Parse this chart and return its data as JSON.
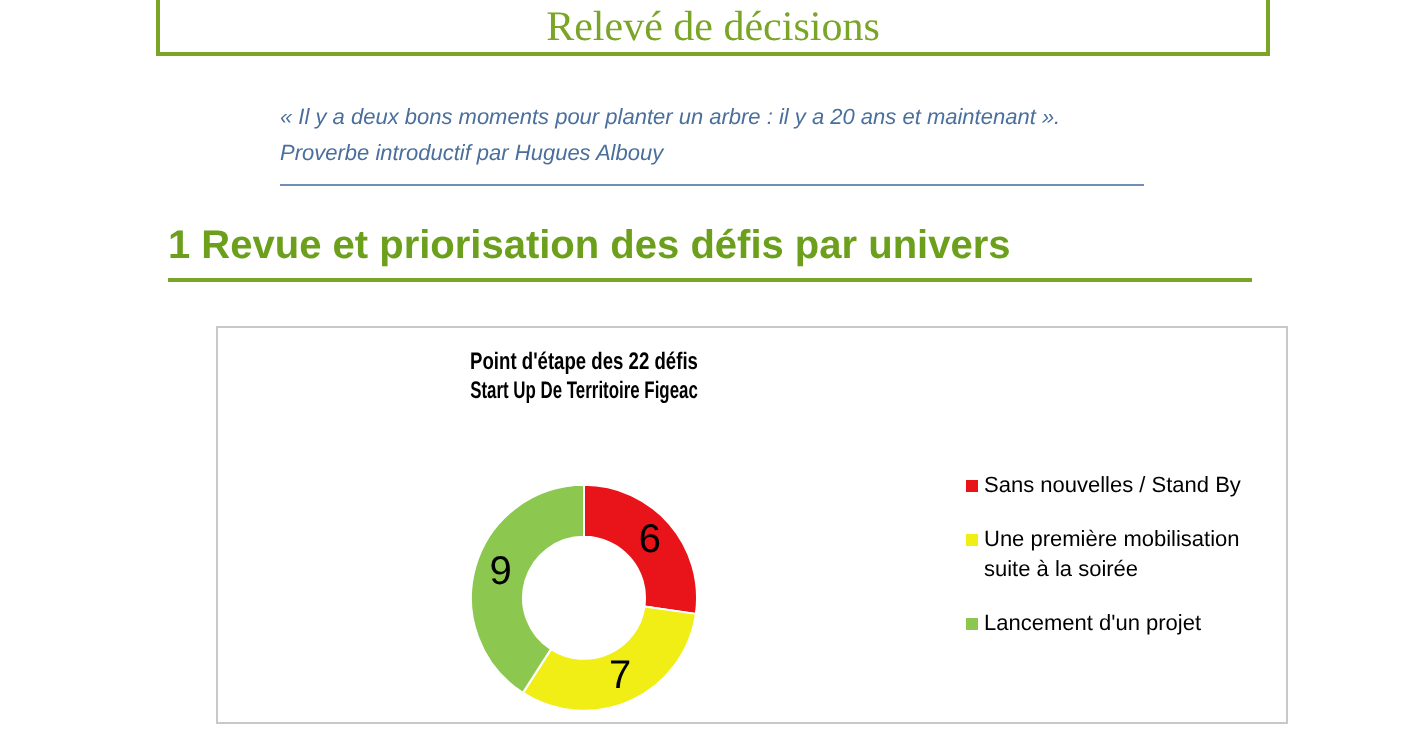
{
  "chart_data": {
    "type": "donut",
    "title": "Point d'étape des 22 défis\nStart Up De Territoire Figeac",
    "categories": [
      "Sans nouvelles / Stand By",
      "Une première mobilisation suite à la soirée",
      "Lancement d'un projet"
    ],
    "values": [
      6,
      7,
      9
    ],
    "colors": [
      "#e8141a",
      "#f0ee14",
      "#8cc850"
    ],
    "data_labels": true,
    "legend": "right",
    "annotations": [
      "Relevé de décisions",
      "« Il y a deux bons moments pour planter un arbre : il y a 20 ans et maintenant ».",
      "Proverbe introductif  par Hugues Albouy",
      "1  Revue et priorisation des défis par univers"
    ]
  }
}
